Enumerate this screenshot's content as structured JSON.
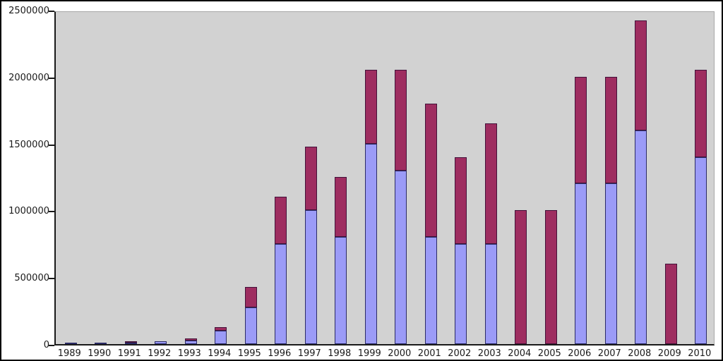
{
  "chart_data": {
    "type": "bar",
    "stacked": true,
    "title": "",
    "xlabel": "",
    "ylabel": "",
    "grid": false,
    "legend": "none",
    "plot_background": "#d2d2d2",
    "outer_background": "#ffffff",
    "ylim": [
      0,
      2500000
    ],
    "yticks": [
      0,
      500000,
      1000000,
      1500000,
      2000000,
      2500000
    ],
    "ytick_labels": [
      "0",
      "500000",
      "1000000",
      "1500000",
      "2000000",
      "2500000"
    ],
    "categories": [
      "1989",
      "1990",
      "1991",
      "1992",
      "1993",
      "1994",
      "1995",
      "1996",
      "1997",
      "1998",
      "1999",
      "2000",
      "2001",
      "2002",
      "2003",
      "2004",
      "2005",
      "2006",
      "2007",
      "2008",
      "2009",
      "2010"
    ],
    "series": [
      {
        "name": "series-blue",
        "color": "#9b9bf7",
        "border_color": "#2b2b66",
        "values": [
          2500,
          5000,
          5000,
          20000,
          25000,
          100000,
          275000,
          750000,
          1000000,
          800000,
          1500000,
          1300000,
          800000,
          750000,
          750000,
          0,
          0,
          1200000,
          1200000,
          1600000,
          0,
          1400000
        ]
      },
      {
        "name": "series-maroon",
        "color": "#9e2d60",
        "border_color": "#43123a",
        "values": [
          0,
          0,
          5000,
          0,
          15000,
          25000,
          150000,
          350000,
          475000,
          450000,
          550000,
          750000,
          1000000,
          650000,
          900000,
          1000000,
          1000000,
          800000,
          800000,
          820000,
          600000,
          650000
        ]
      }
    ],
    "totals": [
      2500,
      5000,
      10000,
      20000,
      40000,
      125000,
      425000,
      1100000,
      1475000,
      1250000,
      2050000,
      2050000,
      1800000,
      1400000,
      1650000,
      1000000,
      1000000,
      2000000,
      2000000,
      2420000,
      600000,
      2050000
    ]
  }
}
